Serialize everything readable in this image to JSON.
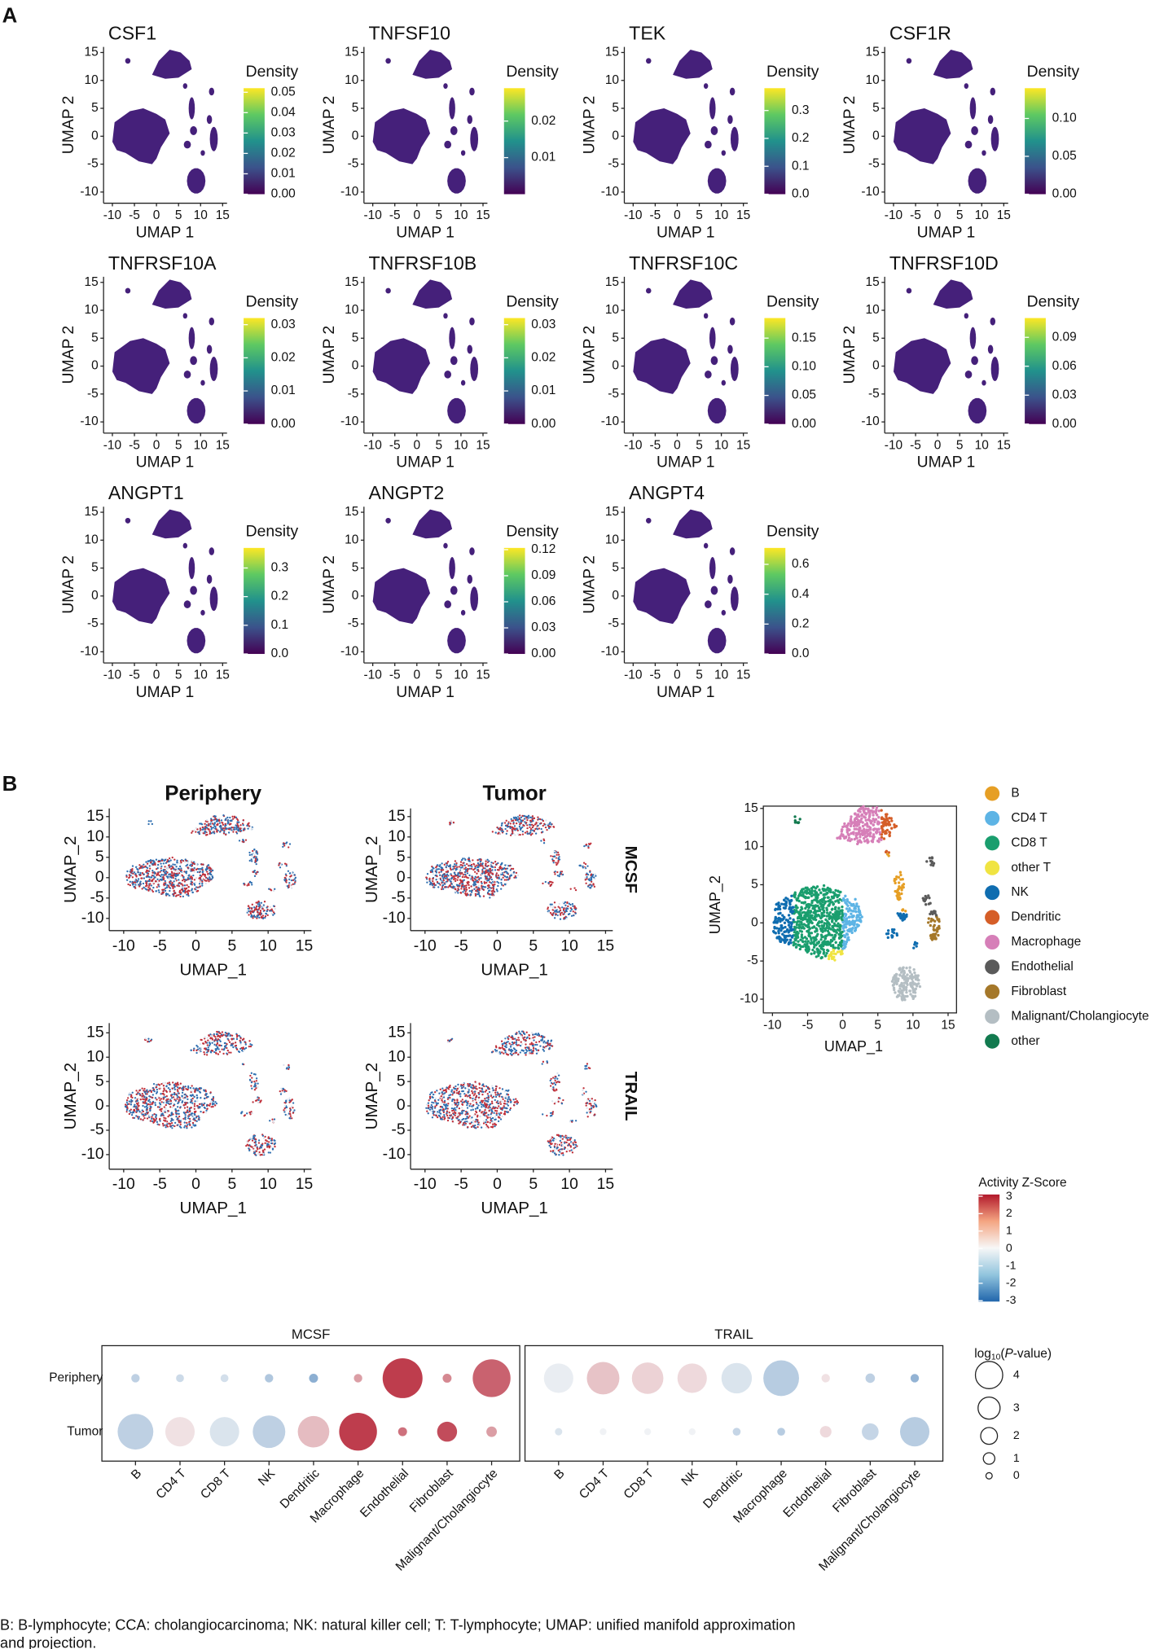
{
  "panel_labels": [
    "A",
    "B"
  ],
  "footnote": [
    "B: B-lymphocyte; CCA: cholangiocarcinoma; NK: natural killer cell; T: T-lymphocyte; UMAP: unified manifold approximation",
    "and projection."
  ],
  "chart_data": [
    {
      "type": "density",
      "xlabel": "UMAP 1",
      "ylabel": "UMAP 2",
      "legend_title": "Density",
      "xlim": [
        -12,
        16
      ],
      "ylim": [
        -12,
        16
      ],
      "xticks": [
        -10,
        -5,
        0,
        5,
        10,
        15
      ],
      "yticks": [
        -10,
        -5,
        0,
        5,
        10,
        15
      ],
      "panels": [
        {
          "title": "CSF1",
          "clim": [
            0,
            0.052
          ],
          "cticks": [
            {
              "value": 0,
              "label": "0.00"
            },
            0.01,
            0.02,
            0.03,
            0.04,
            0.05
          ]
        },
        {
          "title": "TNFSF10",
          "clim": [
            0,
            0.029
          ],
          "cticks": [
            0.01,
            0.02
          ]
        },
        {
          "title": "TEK",
          "clim": [
            0,
            0.38
          ],
          "cticks": [
            {
              "value": 0,
              "label": "0.0"
            },
            0.1,
            0.2,
            0.3
          ]
        },
        {
          "title": "CSF1R",
          "clim": [
            0,
            0.14
          ],
          "cticks": [
            {
              "value": 0,
              "label": "0.00"
            },
            0.05,
            {
              "value": 0.1,
              "label": "0.10"
            }
          ]
        },
        {
          "title": "TNFRSF10A",
          "clim": [
            0,
            0.032
          ],
          "cticks": [
            {
              "value": 0,
              "label": "0.00"
            },
            0.01,
            0.02,
            0.03
          ]
        },
        {
          "title": "TNFRSF10B",
          "clim": [
            0,
            0.032
          ],
          "cticks": [
            {
              "value": 0,
              "label": "0.00"
            },
            0.01,
            0.02,
            0.03
          ]
        },
        {
          "title": "TNFRSF10C",
          "clim": [
            0,
            0.185
          ],
          "cticks": [
            {
              "value": 0,
              "label": "0.00"
            },
            0.05,
            {
              "value": 0.1,
              "label": "0.10"
            },
            0.15
          ]
        },
        {
          "title": "TNFRSF10D",
          "clim": [
            0,
            0.11
          ],
          "cticks": [
            {
              "value": 0,
              "label": "0.00"
            },
            0.03,
            0.06,
            0.09
          ]
        },
        {
          "title": "ANGPT1",
          "clim": [
            0,
            0.37
          ],
          "cticks": [
            {
              "value": 0,
              "label": "0.0"
            },
            0.1,
            0.2,
            0.3
          ]
        },
        {
          "title": "ANGPT2",
          "clim": [
            0,
            0.122
          ],
          "cticks": [
            {
              "value": 0,
              "label": "0.00"
            },
            0.03,
            0.06,
            0.09,
            0.12
          ]
        },
        {
          "title": "ANGPT4",
          "clim": [
            0,
            0.71
          ],
          "cticks": [
            {
              "value": 0,
              "label": "0.0"
            },
            0.2,
            0.4,
            0.6
          ]
        }
      ]
    },
    {
      "type": "activity",
      "columns": [
        "Periphery",
        "Tumor"
      ],
      "rows": [
        "MCSF",
        "TRAIL"
      ],
      "xlabel": "UMAP_1",
      "ylabel": "UMAP_2",
      "xlim": [
        -12,
        16
      ],
      "ylim": [
        -13,
        17
      ],
      "xticks": [
        -10,
        -5,
        0,
        5,
        10,
        15
      ],
      "yticks": [
        -10,
        -5,
        0,
        5,
        10,
        15
      ],
      "legend_title": "Activity Z-Score",
      "clim": [
        -3.05,
        3.1
      ],
      "cticks": [
        3,
        2,
        1,
        0,
        -1,
        -2,
        -3
      ]
    },
    {
      "type": "clusters",
      "xlabel": "UMAP_1",
      "ylabel": "UMAP_2",
      "xlim": [
        -11.3,
        16.2
      ],
      "ylim": [
        -11.8,
        15.3
      ],
      "xticks": [
        -10,
        -5,
        0,
        5,
        10,
        15
      ],
      "yticks": [
        -10,
        -5,
        0,
        5,
        10,
        15
      ],
      "categories": [
        "B",
        "CD4 T",
        "CD8 T",
        "other T",
        "NK",
        "Dendritic",
        "Macrophage",
        "Endothelial",
        "Fibroblast",
        "Malignant/Cholangiocyte",
        "other"
      ],
      "colors": [
        "#e69f25",
        "#5db4e5",
        "#1a9e6e",
        "#f0e442",
        "#0f6db0",
        "#d55e28",
        "#d67fb8",
        "#5a5a5a",
        "#a5782a",
        "#b4bec3",
        "#127a4f"
      ]
    },
    {
      "type": "dot",
      "rows": [
        "Periphery",
        "Tumor"
      ],
      "categories": [
        "B",
        "CD4 T",
        "CD8 T",
        "NK",
        "Dendritic",
        "Macrophage",
        "Endothelial",
        "Fibroblast",
        "Malignant/Cholangiocyte"
      ],
      "panels": [
        {
          "title": "MCSF",
          "values": [
            [
              -0.8,
              -0.6,
              -0.5,
              -1,
              -1.5,
              1.2,
              2.5,
              1.5,
              2
            ],
            [
              -0.8,
              0.3,
              -0.4,
              -0.8,
              0.8,
              2.5,
              1.8,
              2.3,
              1.2
            ]
          ],
          "sizes": [
            [
              0.4,
              0.3,
              0.3,
              0.4,
              0.5,
              0.4,
              6.4,
              0.5,
              6
            ],
            [
              5.6,
              4.4,
              4.4,
              5,
              4.8,
              6,
              0.5,
              2.6,
              0.8
            ]
          ]
        },
        {
          "title": "TRAIL",
          "values": [
            [
              -0.2,
              0.7,
              0.5,
              0.4,
              -0.4,
              -0.9,
              0.3,
              -0.8,
              -1.4
            ],
            [
              -0.4,
              -0.1,
              -0.1,
              -0.1,
              -0.7,
              -0.9,
              0.4,
              -0.7,
              -0.9
            ]
          ],
          "sizes": [
            [
              4.4,
              5,
              4.8,
              4.4,
              4.6,
              5.6,
              0.4,
              0.6,
              0.4
            ],
            [
              0.2,
              0.1,
              0.1,
              0.1,
              0.3,
              0.3,
              1,
              2,
              4.4
            ]
          ]
        }
      ],
      "size_title": [
        "log",
        "10",
        "(",
        "P",
        "-value)"
      ],
      "size_ticks": [
        4,
        3,
        2,
        1,
        0
      ]
    }
  ]
}
